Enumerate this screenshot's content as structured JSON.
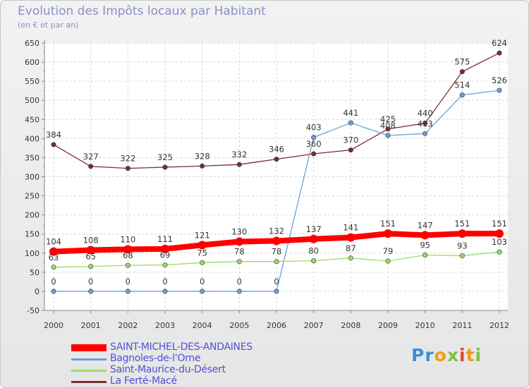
{
  "header": {
    "title": "Evolution des Impôts locaux par Habitant",
    "subtitle": "(en € et par an)"
  },
  "logo": {
    "text": "Proxiti"
  },
  "chart_data": {
    "type": "line",
    "title": "Evolution des Impôts locaux par Habitant",
    "subtitle": "(en € et par an)",
    "xlabel": "",
    "ylabel": "",
    "x": [
      "2000",
      "2001",
      "2002",
      "2003",
      "2004",
      "2005",
      "2006",
      "2007",
      "2008",
      "2009",
      "2010",
      "2011",
      "2012"
    ],
    "ylim": [
      -50,
      650
    ],
    "yticks": [
      -50,
      0,
      50,
      100,
      150,
      200,
      250,
      300,
      350,
      400,
      450,
      500,
      550,
      600,
      650
    ],
    "grid": true,
    "legend_position": "bottom-left",
    "series": [
      {
        "name": "SAINT-MICHEL-DES-ANDAINES",
        "color": "#ff0000",
        "emphasis": true,
        "values": [
          104,
          108,
          110,
          111,
          121,
          130,
          132,
          137,
          141,
          151,
          147,
          151,
          151
        ]
      },
      {
        "name": "Bagnoles-de-l'Orne",
        "color": "#6f9fd8",
        "values": [
          0,
          0,
          0,
          0,
          0,
          0,
          0,
          403,
          441,
          408,
          413,
          514,
          526
        ]
      },
      {
        "name": "Saint-Maurice-du-Désert",
        "color": "#99dd66",
        "values": [
          63,
          65,
          68,
          69,
          75,
          78,
          78,
          80,
          87,
          79,
          95,
          93,
          103
        ]
      },
      {
        "name": "La Ferté-Macé",
        "color": "#7a2e2e",
        "values": [
          384,
          327,
          322,
          325,
          328,
          332,
          346,
          360,
          370,
          425,
          440,
          575,
          624
        ]
      }
    ]
  }
}
